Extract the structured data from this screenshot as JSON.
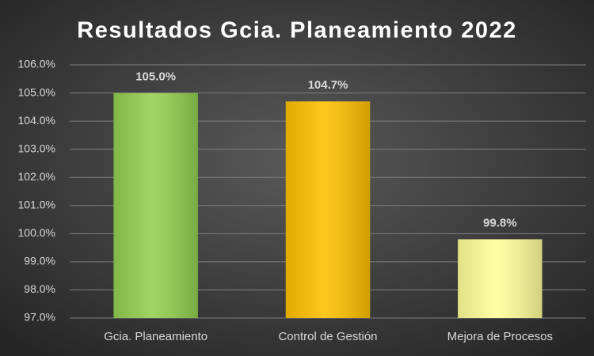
{
  "chart_data": {
    "type": "bar",
    "title": "Resultados Gcia. Planeamiento 2022",
    "categories": [
      "Gcia. Planeamiento",
      "Control de Gestión",
      "Mejora de Procesos"
    ],
    "values": [
      105.0,
      104.7,
      99.8
    ],
    "value_labels": [
      "105.0%",
      "104.7%",
      "99.8%"
    ],
    "colors": [
      "#92d050",
      "#ffc000",
      "#ffff99"
    ],
    "ylim": [
      97,
      106
    ],
    "yticks": [
      {
        "value": 97,
        "label": "97.0%"
      },
      {
        "value": 98,
        "label": "98.0%"
      },
      {
        "value": 99,
        "label": "99.0%"
      },
      {
        "value": 100,
        "label": "100.0%"
      },
      {
        "value": 101,
        "label": "101.0%"
      },
      {
        "value": 102,
        "label": "102.0%"
      },
      {
        "value": 103,
        "label": "103.0%"
      },
      {
        "value": 104,
        "label": "104.0%"
      },
      {
        "value": 105,
        "label": "105.0%"
      },
      {
        "value": 106,
        "label": "106.0%"
      }
    ],
    "grid": true
  }
}
